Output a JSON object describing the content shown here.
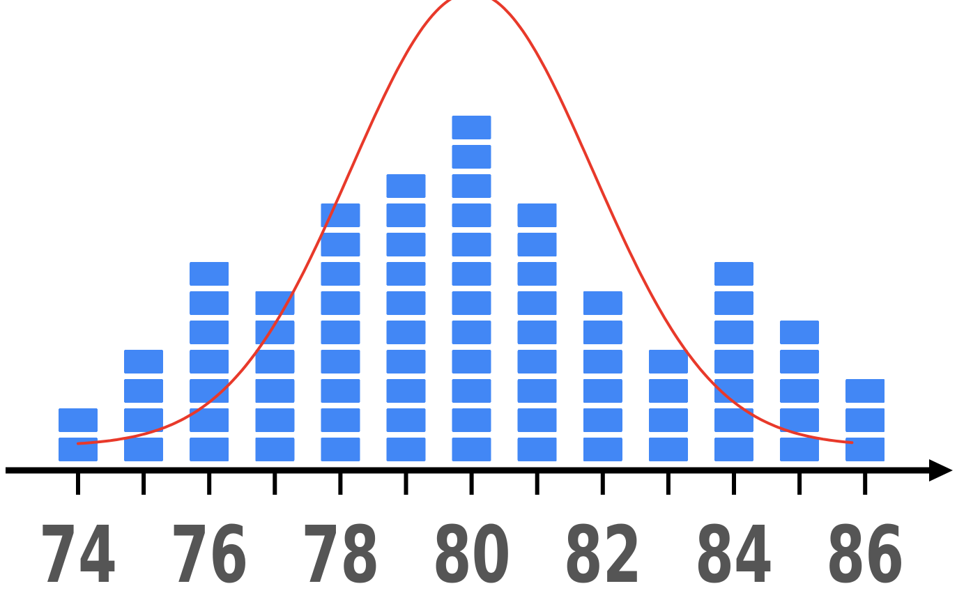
{
  "chart_data": {
    "type": "bar",
    "style": "stacked-unit-dots",
    "x": [
      74,
      75,
      76,
      77,
      78,
      79,
      80,
      81,
      82,
      83,
      84,
      85,
      86
    ],
    "values": [
      2,
      4,
      7,
      6,
      9,
      10,
      12,
      9,
      6,
      4,
      7,
      5,
      3
    ],
    "x_tick_labels": [
      "74",
      "76",
      "78",
      "80",
      "82",
      "84",
      "86"
    ],
    "overlay_curve": {
      "type": "normal",
      "mean": 80,
      "sd": 1.85,
      "peak": 15.5,
      "x_range": [
        74,
        85.8
      ]
    },
    "colors": {
      "bar": "#4287f5",
      "curve": "#e8392a",
      "axis": "#000000",
      "tick_label": "#555555"
    },
    "grid": false,
    "legend": "none",
    "title": "",
    "xlabel": "",
    "ylabel": ""
  }
}
